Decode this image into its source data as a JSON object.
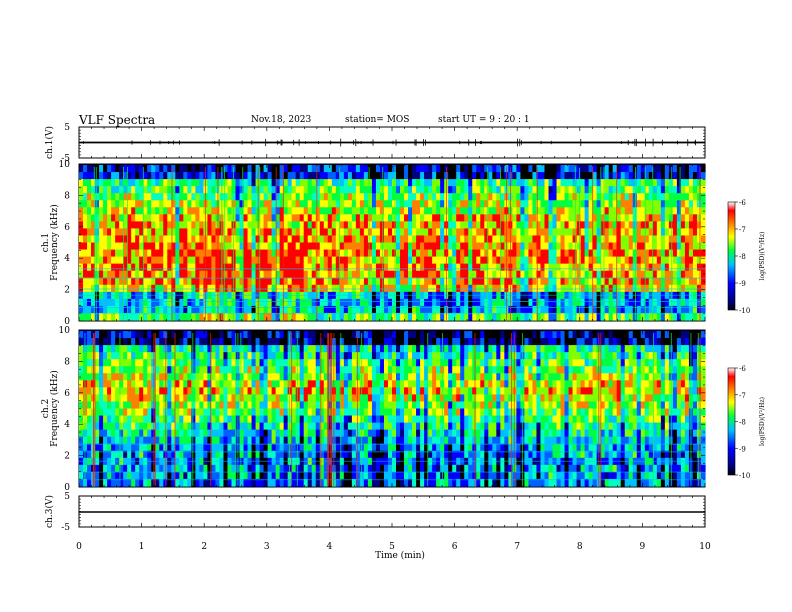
{
  "header": {
    "title": "VLF Spectra",
    "date": "Nov.18, 2023",
    "station": "station= MOS",
    "start": "start  UT =   9 : 20 : 1"
  },
  "chart_data": {
    "type": "heatmap",
    "panels": [
      {
        "id": "ch1-waveform",
        "ylabel": "ch.1(V)",
        "ylim": [
          -5,
          5
        ],
        "yticks": [
          "5",
          "-5"
        ]
      },
      {
        "id": "ch1-spectrum",
        "ylabel": "ch.1 Frequency (kHz)",
        "ylim": [
          0,
          10
        ],
        "yticks": [
          "0",
          "2",
          "4",
          "6",
          "8",
          "10"
        ],
        "colorbar": {
          "label": "log(PSD)(V²/Hz)",
          "range": [
            -10,
            -6
          ],
          "ticks": [
            "-6",
            "-7",
            "-8",
            "-9",
            "-10"
          ]
        }
      },
      {
        "id": "ch2-spectrum",
        "ylabel": "ch.2 Frequency (kHz)",
        "ylim": [
          0,
          10
        ],
        "yticks": [
          "0",
          "2",
          "4",
          "6",
          "8",
          "10"
        ],
        "colorbar": {
          "label": "log(PSD)(V²/Hz)",
          "range": [
            -10,
            -6
          ],
          "ticks": [
            "-6",
            "-7",
            "-8",
            "-9",
            "-10"
          ]
        }
      },
      {
        "id": "ch3-waveform",
        "ylabel": "ch.3(V)",
        "ylim": [
          -5,
          5
        ],
        "yticks": [
          "5",
          "-5"
        ]
      }
    ],
    "xaxis": {
      "label": "Time  (min)",
      "xlim": [
        0,
        10
      ],
      "ticks": [
        "0",
        "1",
        "2",
        "3",
        "4",
        "5",
        "6",
        "7",
        "8",
        "9",
        "10"
      ]
    },
    "colors": {
      "high": "#ff0000",
      "mid": "#00ff00",
      "low": "#0000ff",
      "floor": "#000000"
    }
  }
}
